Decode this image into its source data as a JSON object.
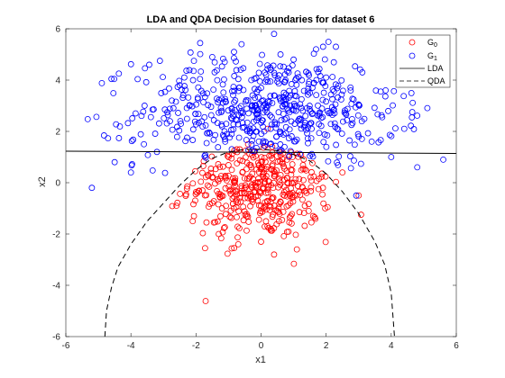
{
  "chart_data": {
    "type": "scatter",
    "title": "LDA and QDA Decision Boundaries for dataset 6",
    "xlabel": "x1",
    "ylabel": "x2",
    "xlim": [
      -6,
      6
    ],
    "ylim": [
      -6,
      6
    ],
    "xticks": [
      "-6",
      "-4",
      "-2",
      "0",
      "2",
      "4",
      "6"
    ],
    "yticks": [
      "-6",
      "-4",
      "-2",
      "0",
      "2",
      "4",
      "6"
    ],
    "grid": false,
    "legend_position": "top-right",
    "series": [
      {
        "name": "G",
        "subscript": "0",
        "marker": "circle",
        "color": "#ff0000",
        "center": [
          0,
          0
        ],
        "spread": [
          1.1,
          1.1
        ],
        "count": 420,
        "region": "below QDA boundary",
        "x": [
          0.1,
          -0.5,
          0.6,
          -1.2,
          1.4,
          -0.2,
          0.3,
          -0.9,
          0.8,
          1.9,
          -1.8,
          0.0,
          -0.4,
          0.5,
          1.1,
          -1.5,
          2.5,
          -2.1,
          0.2,
          -0.7,
          1.6,
          -1.0,
          0.9,
          -0.3,
          3.0,
          -2.6,
          0.4,
          -0.1,
          1.3,
          -1.3
        ],
        "y": [
          0.0,
          -0.6,
          0.3,
          -1.0,
          -0.4,
          1.2,
          -1.8,
          0.5,
          0.9,
          -0.2,
          -0.3,
          -2.3,
          1.5,
          -1.1,
          -2.6,
          0.2,
          0.4,
          -1.5,
          2.1,
          -2.4,
          -1.3,
          1.0,
          -0.8,
          0.6,
          -0.5,
          -0.9,
          -2.8,
          -0.7,
          0.1,
          -2.0
        ]
      },
      {
        "name": "G",
        "subscript": "1",
        "marker": "circle",
        "color": "#0000ff",
        "center": [
          0.2,
          2.8
        ],
        "spread": [
          2.0,
          1.1
        ],
        "count": 580,
        "region": "above QDA boundary",
        "x": [
          0.4,
          -0.6,
          1.0,
          -1.5,
          2.0,
          0.0,
          -2.8,
          3.0,
          -3.6,
          4.0,
          -4.5,
          4.8,
          0.6,
          -0.9,
          1.5,
          -2.2,
          2.6,
          -3.2,
          3.4,
          0.3,
          -0.3,
          1.2,
          -1.2,
          5.6,
          -5.2,
          0.1,
          2.3,
          -2.5,
          4.4,
          -4.0
        ],
        "y": [
          5.8,
          5.4,
          4.8,
          4.9,
          4.1,
          3.7,
          2.4,
          1.8,
          1.5,
          1.0,
          0.8,
          0.6,
          3.2,
          2.9,
          3.5,
          3.0,
          2.7,
          1.2,
          1.6,
          4.4,
          4.0,
          2.5,
          2.2,
          0.9,
          -0.2,
          2.0,
          5.3,
          3.8,
          2.1,
          0.4
        ]
      }
    ],
    "lines": [
      {
        "name": "LDA",
        "style": "solid",
        "color": "#000000",
        "x": [
          -6,
          6
        ],
        "y": [
          1.23,
          1.14
        ]
      },
      {
        "name": "QDA",
        "style": "dashed",
        "color": "#000000",
        "x": [
          -4.8,
          -4.75,
          -4.6,
          -4.4,
          -4.0,
          -3.5,
          -3.0,
          -2.5,
          -2.0,
          -1.5,
          -1.0,
          -0.5,
          0.0,
          0.5,
          1.0,
          1.5,
          2.0,
          2.5,
          3.0,
          3.5,
          3.8,
          4.0,
          4.1
        ],
        "y": [
          -6.0,
          -5.0,
          -4.1,
          -3.3,
          -2.4,
          -1.5,
          -0.8,
          -0.1,
          0.5,
          0.95,
          1.2,
          1.3,
          1.3,
          1.25,
          1.1,
          0.85,
          0.35,
          -0.35,
          -1.2,
          -2.3,
          -3.2,
          -4.3,
          -6.0
        ]
      }
    ]
  }
}
